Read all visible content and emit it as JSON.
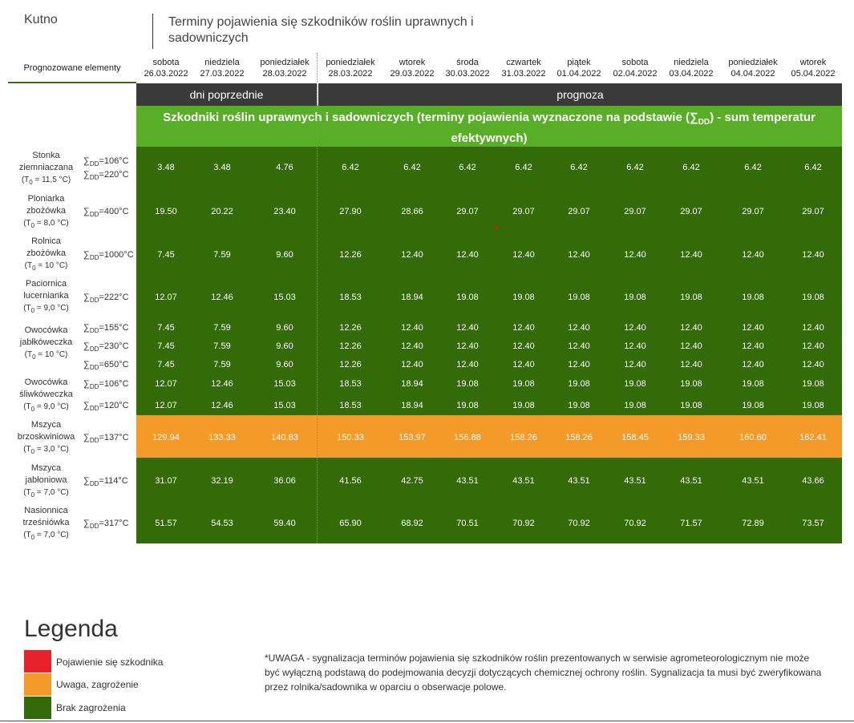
{
  "station": "Kutno",
  "title": "Terminy pojawienia się szkodników roślin uprawnych i sadowniczych",
  "header_label": "Prognozowane elementy",
  "days": [
    {
      "name": "sobota",
      "date": "26.03.2022"
    },
    {
      "name": "niedziela",
      "date": "27.03.2022"
    },
    {
      "name": "poniedziałek",
      "date": "28.03.2022"
    },
    {
      "name": "poniedziałek",
      "date": "28.03.2022"
    },
    {
      "name": "wtorek",
      "date": "29.03.2022"
    },
    {
      "name": "środa",
      "date": "30.03.2022"
    },
    {
      "name": "czwartek",
      "date": "31.03.2022"
    },
    {
      "name": "piątek",
      "date": "01.04.2022"
    },
    {
      "name": "sobota",
      "date": "02.04.2022"
    },
    {
      "name": "niedziela",
      "date": "03.04.2022"
    },
    {
      "name": "poniedziałek",
      "date": "04.04.2022"
    },
    {
      "name": "wtorek",
      "date": "05.04.2022"
    }
  ],
  "band_previous": "dni poprzednie",
  "band_forecast": "prognoza",
  "section_title_a": "Szkodniki roślin uprawnych i sadowniczych (terminy pojawienia wyznaczone na podstawie (",
  "section_sym": "∑",
  "section_sub": "DD",
  "section_title_b": ") - sum temperatur efektywnych)",
  "sum_symbol": "∑",
  "sum_sub": "DD",
  "temp_prefix": "(T",
  "temp_sub": "0",
  "pests": [
    {
      "l1": "Stonka",
      "l2": "ziemniaczana",
      "temp": " = 11,5 °C)",
      "thresholds": [
        "=106°C",
        "=220°C"
      ],
      "rows": [
        [
          "3.48",
          "3.48",
          "4.76",
          "6.42",
          "6.42",
          "6.42",
          "6.42",
          "6.42",
          "6.42",
          "6.42",
          "6.42",
          "6.42"
        ]
      ]
    },
    {
      "l1": "Ploniarka",
      "l2": "zbożówka",
      "temp": " = 8,0 °C)",
      "thresholds": [
        "=400°C"
      ],
      "rows": [
        [
          "19.50",
          "20.22",
          "23.40",
          "27.90",
          "28.66",
          "29.07",
          "29.07",
          "29.07",
          "29.07",
          "29.07",
          "29.07",
          "29.07"
        ]
      ]
    },
    {
      "l1": "Rolnica",
      "l2": "zbożówka",
      "temp": " = 10 °C)",
      "thresholds": [
        "=1000°C"
      ],
      "rows": [
        [
          "7.45",
          "7.59",
          "9.60",
          "12.26",
          "12.40",
          "12.40",
          "12.40",
          "12.40",
          "12.40",
          "12.40",
          "12.40",
          "12.40"
        ]
      ]
    },
    {
      "l1": "Paciornica",
      "l2": "lucernianka",
      "temp": " = 9,0 °C)",
      "thresholds": [
        "=222°C"
      ],
      "rows": [
        [
          "12.07",
          "12.46",
          "15.03",
          "18.53",
          "18.94",
          "19.08",
          "19.08",
          "19.08",
          "19.08",
          "19.08",
          "19.08",
          "19.08"
        ]
      ]
    },
    {
      "l1": "Owocówka",
      "l2": "jabłkóweczka",
      "temp": " = 10 °C)",
      "thresholds": [
        "=155°C",
        "=230°C",
        "=650°C"
      ],
      "rows": [
        [
          "7.45",
          "7.59",
          "9.60",
          "12.26",
          "12.40",
          "12.40",
          "12.40",
          "12.40",
          "12.40",
          "12.40",
          "12.40",
          "12.40"
        ],
        [
          "7.45",
          "7.59",
          "9.60",
          "12.26",
          "12.40",
          "12.40",
          "12.40",
          "12.40",
          "12.40",
          "12.40",
          "12.40",
          "12.40"
        ],
        [
          "7.45",
          "7.59",
          "9.60",
          "12.26",
          "12.40",
          "12.40",
          "12.40",
          "12.40",
          "12.40",
          "12.40",
          "12.40",
          "12.40"
        ]
      ]
    },
    {
      "l1": "Owocówka",
      "l2": "śliwkóweczka",
      "temp": " = 9,0 °C)",
      "thresholds": [
        "=106°C",
        "=120°C"
      ],
      "rows": [
        [
          "12.07",
          "12.46",
          "15.03",
          "18.53",
          "18.94",
          "19.08",
          "19.08",
          "19.08",
          "19.08",
          "19.08",
          "19.08",
          "19.08"
        ],
        [
          "12.07",
          "12.46",
          "15.03",
          "18.53",
          "18.94",
          "19.08",
          "19.08",
          "19.08",
          "19.08",
          "19.08",
          "19.08",
          "19.08"
        ]
      ]
    },
    {
      "l1": "Mszyca",
      "l2": "brzoskwiniowa",
      "temp": " = 3,0 °C)",
      "thresholds": [
        "=137°C"
      ],
      "rows": [
        [
          "129.94",
          "133.33",
          "140.83",
          "150.33",
          "153.97",
          "156.88",
          "158.26",
          "158.26",
          "158.45",
          "159.33",
          "160.60",
          "162.41"
        ]
      ]
    },
    {
      "l1": "Mszyca",
      "l2": "jabłoniowa",
      "temp": " = 7,0 °C)",
      "thresholds": [
        "=114°C"
      ],
      "rows": [
        [
          "31.07",
          "32.19",
          "36.06",
          "41.56",
          "42.75",
          "43.51",
          "43.51",
          "43.51",
          "43.51",
          "43.51",
          "43.51",
          "43.66"
        ]
      ]
    },
    {
      "l1": "Nasionnica",
      "l2": "trześniówka",
      "temp": " = 7,0 °C)",
      "thresholds": [
        "=317°C"
      ],
      "rows": [
        [
          "51.57",
          "54.53",
          "59.40",
          "65.90",
          "68.92",
          "70.51",
          "70.92",
          "70.92",
          "70.92",
          "71.57",
          "72.89",
          "73.57"
        ]
      ]
    }
  ],
  "legend": {
    "title": "Legenda",
    "items": [
      {
        "label": "Pojawienie się szkodnika",
        "color": "#e8212b"
      },
      {
        "label": "Uwaga, zagrożenie",
        "color": "#f49a28"
      },
      {
        "label": "Brak zagrożenia",
        "color": "#336b08"
      }
    ]
  },
  "note": "*UWAGA - sygnalizacja terminów pojawienia się szkodników roślin prezentowanych w serwisie agrometeorologicznym nie może być wyłączną podstawą do podejmowania decyzji dotyczących chemicznej ochrony roślin. Sygnalizacja ta musi być zweryfikowana przez rolnika/sadownika w oparciu o obserwacje polowe."
}
